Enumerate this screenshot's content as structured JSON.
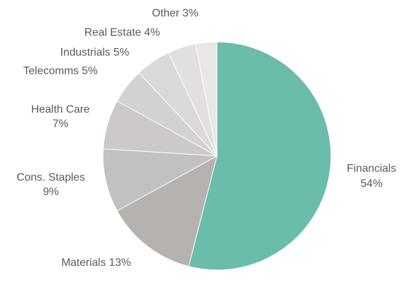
{
  "chart_data": {
    "type": "pie",
    "title": "",
    "start_angle_deg": 0,
    "direction": "clockwise",
    "slices": [
      {
        "name": "Financials",
        "value": 54,
        "label": [
          "Financials",
          "54%"
        ],
        "color": "#6abcab"
      },
      {
        "name": "Materials",
        "value": 13,
        "label": [
          "Materials 13%"
        ],
        "color": "#b5b2b0"
      },
      {
        "name": "Cons. Staples",
        "value": 9,
        "label": [
          "Cons. Staples",
          "9%"
        ],
        "color": "#c3c1c0"
      },
      {
        "name": "Health Care",
        "value": 7,
        "label": [
          "Health Care",
          "7%"
        ],
        "color": "#ccc9c8"
      },
      {
        "name": "Telecomms",
        "value": 5,
        "label": [
          "Telecomms 5%"
        ],
        "color": "#d4d2d1"
      },
      {
        "name": "Industrials",
        "value": 5,
        "label": [
          "Industrials 5%"
        ],
        "color": "#dbd9d8"
      },
      {
        "name": "Real Estate",
        "value": 4,
        "label": [
          "Real Estate 4%"
        ],
        "color": "#e2e0df"
      },
      {
        "name": "Other",
        "value": 3,
        "label": [
          "Other 3%"
        ],
        "color": "#e8e7e6"
      }
    ]
  }
}
